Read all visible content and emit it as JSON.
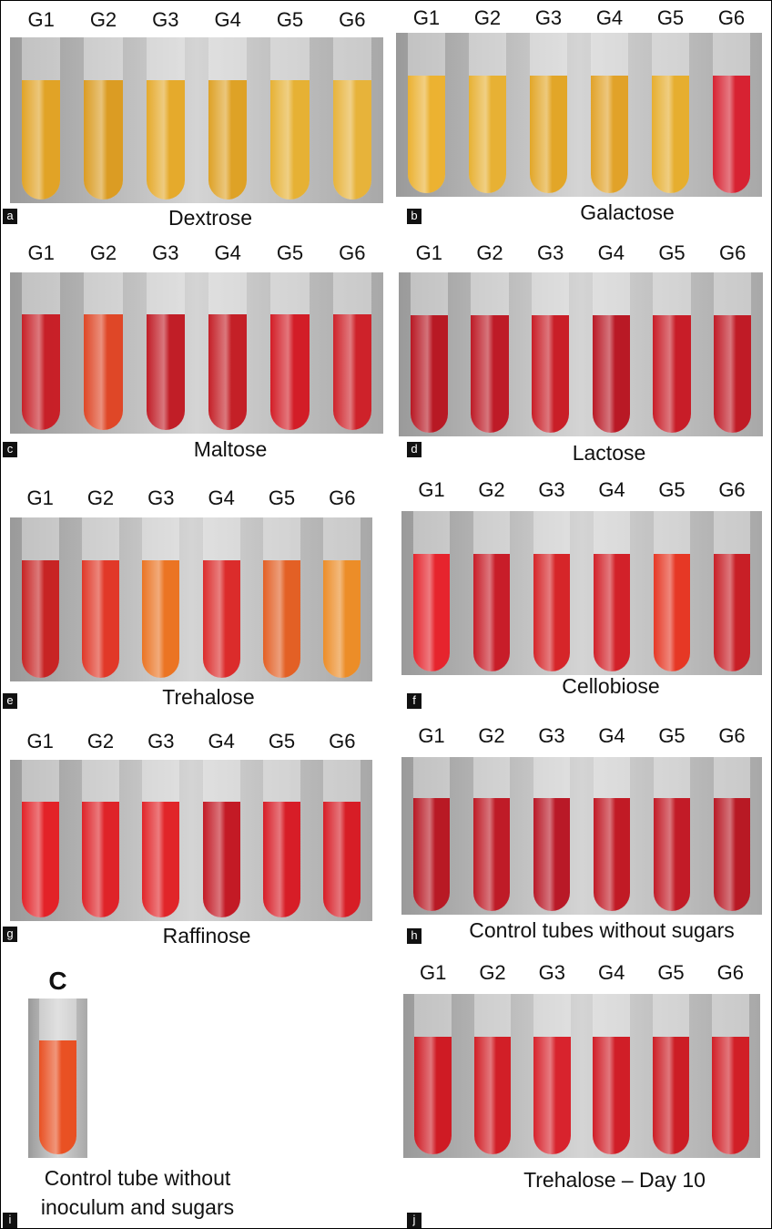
{
  "panels": [
    {
      "letter": "a",
      "caption": "Dextrose",
      "tubes": [
        "G1",
        "G2",
        "G3",
        "G4",
        "G5",
        "G6"
      ]
    },
    {
      "letter": "b",
      "caption": "Galactose",
      "tubes": [
        "G1",
        "G2",
        "G3",
        "G4",
        "G5",
        "G6"
      ]
    },
    {
      "letter": "c",
      "caption": "Maltose",
      "tubes": [
        "G1",
        "G2",
        "G3",
        "G4",
        "G5",
        "G6"
      ]
    },
    {
      "letter": "d",
      "caption": "Lactose",
      "tubes": [
        "G1",
        "G2",
        "G3",
        "G4",
        "G5",
        "G6"
      ]
    },
    {
      "letter": "e",
      "caption": "Trehalose",
      "tubes": [
        "G1",
        "G2",
        "G3",
        "G4",
        "G5",
        "G6"
      ]
    },
    {
      "letter": "f",
      "caption": "Cellobiose",
      "tubes": [
        "G1",
        "G2",
        "G3",
        "G4",
        "G5",
        "G6"
      ]
    },
    {
      "letter": "g",
      "caption": "Raffinose",
      "tubes": [
        "G1",
        "G2",
        "G3",
        "G4",
        "G5",
        "G6"
      ]
    },
    {
      "letter": "h",
      "caption": "Control tubes without sugars",
      "tubes": [
        "G1",
        "G2",
        "G3",
        "G4",
        "G5",
        "G6"
      ]
    },
    {
      "letter": "i",
      "caption": "Control tube without inoculum and sugars",
      "tubes": [
        "C"
      ]
    },
    {
      "letter": "j",
      "caption": "Trehalose – Day 10",
      "tubes": [
        "G1",
        "G2",
        "G3",
        "G4",
        "G5",
        "G6"
      ]
    }
  ]
}
